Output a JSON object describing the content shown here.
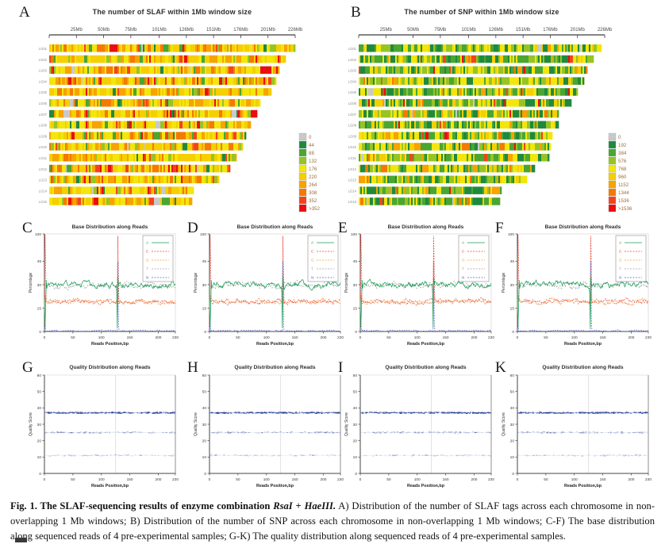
{
  "panel_letters": [
    "A",
    "B",
    "C",
    "D",
    "E",
    "F",
    "G",
    "H",
    "I",
    "K"
  ],
  "caption": {
    "bold_prefix": "Fig. 1. The SLAF-sequencing results of enzyme combination ",
    "enzyme1": "RsaI",
    "joiner": " + ",
    "enzyme2": "HaeIII.",
    "body": " A) Distribution of the number of SLAF tags across each chromosome in non-overlapping 1 Mb windows; B) Distribution of the number of SNP across each chromosome in non-overlapping 1 Mb windows; C-F) The base distribution along sequenced reads of 4 pre-experimental samples; G-K) The quality distribution along sequenced reads of 4 pre-experimental samples."
  },
  "chart_data": [
    {
      "panel": "A",
      "type": "heatmap",
      "title": "The number of SLAF within 1Mb window size",
      "x_tick_labels": [
        "25Mb",
        "50Mb",
        "75Mb",
        "101Mb",
        "126Mb",
        "151Mb",
        "176Mb",
        "201Mb",
        "226Mb"
      ],
      "x_tick_mb": [
        25,
        50,
        75,
        101,
        126,
        151,
        176,
        201,
        226
      ],
      "axis_max_mb": 226,
      "row_labels": [
        "LG01",
        "LG02",
        "LG03",
        "LG04",
        "LG05",
        "LG06",
        "LG07",
        "LG08",
        "LG09",
        "LG10",
        "LG11",
        "LG12",
        "LG13",
        "LG14",
        "LG15"
      ],
      "row_lengths_mb": [
        226,
        216,
        210,
        208,
        203,
        193,
        190,
        185,
        180,
        177,
        172,
        165,
        156,
        132,
        130
      ],
      "legend_values": [
        "0",
        "44",
        "88",
        "132",
        "176",
        "220",
        "264",
        "308",
        "352",
        ">352"
      ],
      "legend_colors": [
        "#c9c9c9",
        "#1f8a3d",
        "#4aa631",
        "#97c425",
        "#f2e60c",
        "#f5cf00",
        "#f7a300",
        "#f47a00",
        "#f2441c",
        "#ea0e0e"
      ],
      "stripe_weights": [
        0.01,
        0.02,
        0.04,
        0.06,
        0.27,
        0.27,
        0.15,
        0.09,
        0.05,
        0.04
      ],
      "value_unit": "SLAF tags per non-overlapping 1Mb window"
    },
    {
      "panel": "B",
      "type": "heatmap",
      "title": "The number of SNP within 1Mb window size",
      "x_tick_labels": [
        "25Mb",
        "50Mb",
        "75Mb",
        "101Mb",
        "126Mb",
        "151Mb",
        "176Mb",
        "201Mb",
        "226Mb"
      ],
      "x_tick_mb": [
        25,
        50,
        75,
        101,
        126,
        151,
        176,
        201,
        226
      ],
      "axis_max_mb": 226,
      "row_labels": [
        "LG01",
        "LG02",
        "LG03",
        "LG04",
        "LG05",
        "LG06",
        "LG07",
        "LG08",
        "LG09",
        "LG10",
        "LG11",
        "LG12",
        "LG13",
        "LG14",
        "LG15"
      ],
      "row_lengths_mb": [
        222,
        215,
        209,
        206,
        201,
        195,
        183,
        183,
        177,
        175,
        174,
        161,
        154,
        131,
        129
      ],
      "legend_values": [
        "0",
        "192",
        "384",
        "576",
        "768",
        "960",
        "1152",
        "1344",
        "1536",
        ">1536"
      ],
      "legend_colors": [
        "#c9c9c9",
        "#1f8a3d",
        "#4aa631",
        "#97c425",
        "#f2e60c",
        "#f5cf00",
        "#f7a300",
        "#f47a00",
        "#f2441c",
        "#ea0e0e"
      ],
      "stripe_weights": [
        0.01,
        0.17,
        0.22,
        0.18,
        0.24,
        0.09,
        0.05,
        0.02,
        0.01,
        0.01
      ],
      "value_unit": "SNP per non-overlapping 1Mb window"
    },
    {
      "panels": [
        "C",
        "D",
        "E",
        "F"
      ],
      "type": "line",
      "title": "Base Distribution along Reads",
      "xlabel": "Reads Position,bp",
      "ylabel": "Percentage",
      "x_ticks": [
        0,
        50,
        100,
        150,
        200,
        230
      ],
      "y_ticks": [
        0,
        15,
        30,
        45,
        100
      ],
      "xlim": [
        0,
        230
      ],
      "ylim": [
        0,
        100
      ],
      "read_boundary_bp": 128,
      "legend": [
        {
          "label": "A",
          "color": "#1e9e5a",
          "style": "solid"
        },
        {
          "label": "C",
          "color": "#e8402e",
          "style": "dashed"
        },
        {
          "label": "G",
          "color": "#f0a13b",
          "style": "dashed"
        },
        {
          "label": "T",
          "color": "#a0a0a0",
          "style": "dashed"
        },
        {
          "label": "N",
          "color": "#5566cc",
          "style": "dashed"
        }
      ],
      "series_summary": [
        {
          "label": "A",
          "baseline_pct": 30,
          "note": "wiggly band ~30%; sharp dip to ~2% at positions 1 and 128"
        },
        {
          "label": "T",
          "baseline_pct": 29.5,
          "note": "overlaps the A band"
        },
        {
          "label": "G",
          "baseline_pct": 19,
          "note": "wiggly band ~19%"
        },
        {
          "label": "C",
          "baseline_pct": 19,
          "note": "overlaps G band; dashed spike to ~100% at positions 1 and 129"
        },
        {
          "label": "N",
          "baseline_pct": 0.4,
          "note": "near 0; spike to ~45% at position 129"
        }
      ]
    },
    {
      "panels": [
        "G",
        "H",
        "I",
        "K"
      ],
      "type": "scatter",
      "title": "Quality Distribution along Reads",
      "xlabel": "Reads Position,bp",
      "ylabel": "Quality Score",
      "x_ticks": [
        0,
        50,
        100,
        150,
        200,
        230
      ],
      "y_ticks": [
        0,
        10,
        20,
        30,
        40,
        50,
        60
      ],
      "xlim": [
        0,
        230
      ],
      "ylim": [
        0,
        60
      ],
      "gridline_x_bp": 125,
      "bands": [
        {
          "score": 37,
          "density": "high"
        },
        {
          "score": 25,
          "density": "medium"
        },
        {
          "score": 11,
          "density": "sparse"
        }
      ],
      "point_color": "#2c4699"
    }
  ]
}
